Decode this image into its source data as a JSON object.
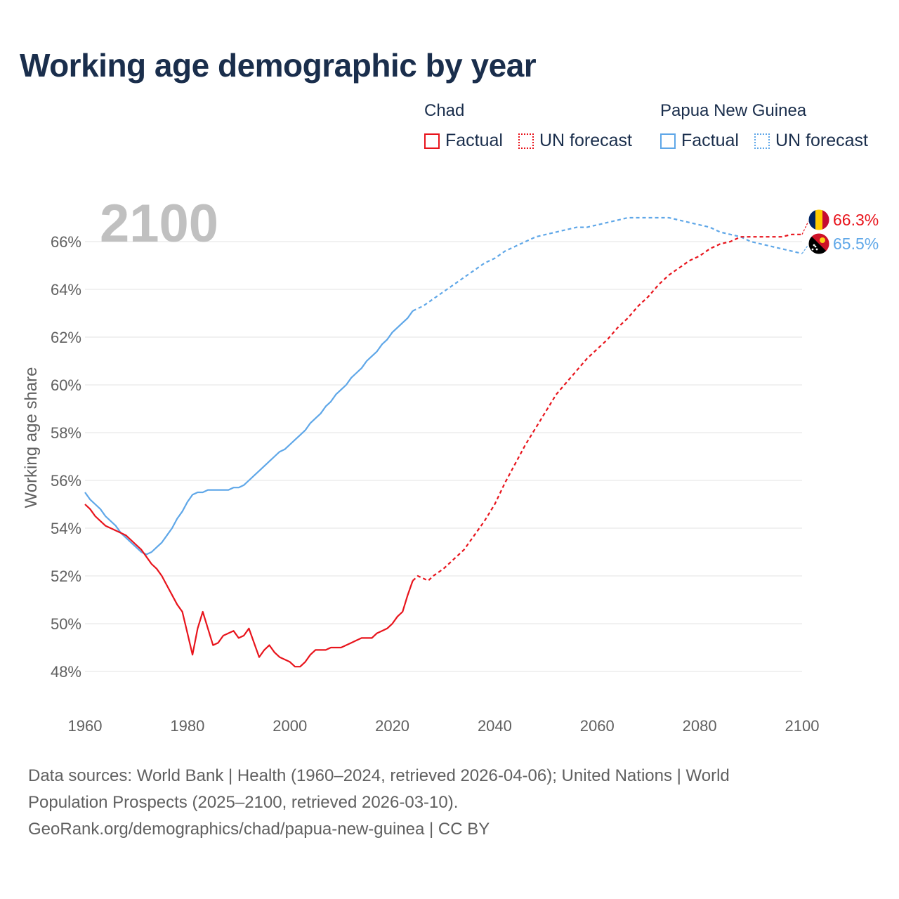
{
  "title": "Working age demographic by year",
  "legend": {
    "groups": [
      {
        "name": "Chad",
        "color": "#e8141c",
        "factual_label": "Factual",
        "forecast_label": "UN forecast"
      },
      {
        "name": "Papua New Guinea",
        "color": "#5fa7e8",
        "factual_label": "Factual",
        "forecast_label": "UN forecast"
      }
    ]
  },
  "chart_data": {
    "type": "line",
    "title": "Working age demographic by year",
    "year_watermark": "2100",
    "xlabel": "",
    "ylabel": "Working age share",
    "xlim": [
      1960,
      2100
    ],
    "ylim": [
      47,
      67.5
    ],
    "x_ticks": [
      1960,
      1980,
      2000,
      2020,
      2040,
      2060,
      2080,
      2100
    ],
    "x_tick_labels": [
      "1960",
      "1980",
      "2000",
      "2020",
      "2040",
      "2060",
      "2080",
      "2100"
    ],
    "y_ticks": [
      48,
      50,
      52,
      54,
      56,
      58,
      60,
      62,
      64,
      66
    ],
    "y_tick_labels": [
      "48%",
      "50%",
      "52%",
      "54%",
      "56%",
      "58%",
      "60%",
      "62%",
      "64%",
      "66%"
    ],
    "grid": true,
    "factual_range": "1960–2024",
    "forecast_range": "2025–2100",
    "series": [
      {
        "name": "Chad",
        "color": "#e8141c",
        "end_label": "66.3%",
        "flag_colors": [
          "#002664",
          "#fecb00",
          "#c60c30"
        ],
        "factual": [
          [
            1960,
            55.0
          ],
          [
            1961,
            54.8
          ],
          [
            1962,
            54.5
          ],
          [
            1963,
            54.3
          ],
          [
            1964,
            54.1
          ],
          [
            1965,
            54.0
          ],
          [
            1966,
            53.9
          ],
          [
            1967,
            53.8
          ],
          [
            1968,
            53.7
          ],
          [
            1969,
            53.5
          ],
          [
            1970,
            53.3
          ],
          [
            1971,
            53.1
          ],
          [
            1972,
            52.8
          ],
          [
            1973,
            52.5
          ],
          [
            1974,
            52.3
          ],
          [
            1975,
            52.0
          ],
          [
            1976,
            51.6
          ],
          [
            1977,
            51.2
          ],
          [
            1978,
            50.8
          ],
          [
            1979,
            50.5
          ],
          [
            1980,
            49.6
          ],
          [
            1981,
            48.7
          ],
          [
            1982,
            49.8
          ],
          [
            1983,
            50.5
          ],
          [
            1984,
            49.8
          ],
          [
            1985,
            49.1
          ],
          [
            1986,
            49.2
          ],
          [
            1987,
            49.5
          ],
          [
            1988,
            49.6
          ],
          [
            1989,
            49.7
          ],
          [
            1990,
            49.4
          ],
          [
            1991,
            49.5
          ],
          [
            1992,
            49.8
          ],
          [
            1993,
            49.2
          ],
          [
            1994,
            48.6
          ],
          [
            1995,
            48.9
          ],
          [
            1996,
            49.1
          ],
          [
            1997,
            48.8
          ],
          [
            1998,
            48.6
          ],
          [
            1999,
            48.5
          ],
          [
            2000,
            48.4
          ],
          [
            2001,
            48.2
          ],
          [
            2002,
            48.2
          ],
          [
            2003,
            48.4
          ],
          [
            2004,
            48.7
          ],
          [
            2005,
            48.9
          ],
          [
            2006,
            48.9
          ],
          [
            2007,
            48.9
          ],
          [
            2008,
            49.0
          ],
          [
            2009,
            49.0
          ],
          [
            2010,
            49.0
          ],
          [
            2011,
            49.1
          ],
          [
            2012,
            49.2
          ],
          [
            2013,
            49.3
          ],
          [
            2014,
            49.4
          ],
          [
            2015,
            49.4
          ],
          [
            2016,
            49.4
          ],
          [
            2017,
            49.6
          ],
          [
            2018,
            49.7
          ],
          [
            2019,
            49.8
          ],
          [
            2020,
            50.0
          ],
          [
            2021,
            50.3
          ],
          [
            2022,
            50.5
          ],
          [
            2023,
            51.2
          ],
          [
            2024,
            51.8
          ]
        ],
        "forecast": [
          [
            2024,
            51.8
          ],
          [
            2025,
            52.0
          ],
          [
            2026,
            51.9
          ],
          [
            2027,
            51.8
          ],
          [
            2028,
            52.0
          ],
          [
            2030,
            52.3
          ],
          [
            2032,
            52.7
          ],
          [
            2034,
            53.1
          ],
          [
            2036,
            53.7
          ],
          [
            2038,
            54.3
          ],
          [
            2040,
            55.0
          ],
          [
            2042,
            55.9
          ],
          [
            2044,
            56.7
          ],
          [
            2046,
            57.5
          ],
          [
            2048,
            58.2
          ],
          [
            2050,
            58.9
          ],
          [
            2052,
            59.6
          ],
          [
            2054,
            60.1
          ],
          [
            2056,
            60.6
          ],
          [
            2058,
            61.1
          ],
          [
            2060,
            61.5
          ],
          [
            2062,
            61.9
          ],
          [
            2064,
            62.4
          ],
          [
            2066,
            62.8
          ],
          [
            2068,
            63.3
          ],
          [
            2070,
            63.7
          ],
          [
            2072,
            64.2
          ],
          [
            2074,
            64.6
          ],
          [
            2076,
            64.9
          ],
          [
            2078,
            65.2
          ],
          [
            2080,
            65.4
          ],
          [
            2082,
            65.7
          ],
          [
            2084,
            65.9
          ],
          [
            2086,
            66.0
          ],
          [
            2088,
            66.2
          ],
          [
            2090,
            66.2
          ],
          [
            2092,
            66.2
          ],
          [
            2094,
            66.2
          ],
          [
            2096,
            66.2
          ],
          [
            2098,
            66.3
          ],
          [
            2100,
            66.3
          ]
        ]
      },
      {
        "name": "Papua New Guinea",
        "color": "#5fa7e8",
        "end_label": "65.5%",
        "flag_colors": [
          "#000000",
          "#ce1126",
          "#fcd116"
        ],
        "factual": [
          [
            1960,
            55.5
          ],
          [
            1961,
            55.2
          ],
          [
            1962,
            55.0
          ],
          [
            1963,
            54.8
          ],
          [
            1964,
            54.5
          ],
          [
            1965,
            54.3
          ],
          [
            1966,
            54.1
          ],
          [
            1967,
            53.8
          ],
          [
            1968,
            53.6
          ],
          [
            1969,
            53.4
          ],
          [
            1970,
            53.2
          ],
          [
            1971,
            53.0
          ],
          [
            1972,
            52.9
          ],
          [
            1973,
            53.0
          ],
          [
            1974,
            53.2
          ],
          [
            1975,
            53.4
          ],
          [
            1976,
            53.7
          ],
          [
            1977,
            54.0
          ],
          [
            1978,
            54.4
          ],
          [
            1979,
            54.7
          ],
          [
            1980,
            55.1
          ],
          [
            1981,
            55.4
          ],
          [
            1982,
            55.5
          ],
          [
            1983,
            55.5
          ],
          [
            1984,
            55.6
          ],
          [
            1985,
            55.6
          ],
          [
            1986,
            55.6
          ],
          [
            1987,
            55.6
          ],
          [
            1988,
            55.6
          ],
          [
            1989,
            55.7
          ],
          [
            1990,
            55.7
          ],
          [
            1991,
            55.8
          ],
          [
            1992,
            56.0
          ],
          [
            1993,
            56.2
          ],
          [
            1994,
            56.4
          ],
          [
            1995,
            56.6
          ],
          [
            1996,
            56.8
          ],
          [
            1997,
            57.0
          ],
          [
            1998,
            57.2
          ],
          [
            1999,
            57.3
          ],
          [
            2000,
            57.5
          ],
          [
            2001,
            57.7
          ],
          [
            2002,
            57.9
          ],
          [
            2003,
            58.1
          ],
          [
            2004,
            58.4
          ],
          [
            2005,
            58.6
          ],
          [
            2006,
            58.8
          ],
          [
            2007,
            59.1
          ],
          [
            2008,
            59.3
          ],
          [
            2009,
            59.6
          ],
          [
            2010,
            59.8
          ],
          [
            2011,
            60.0
          ],
          [
            2012,
            60.3
          ],
          [
            2013,
            60.5
          ],
          [
            2014,
            60.7
          ],
          [
            2015,
            61.0
          ],
          [
            2016,
            61.2
          ],
          [
            2017,
            61.4
          ],
          [
            2018,
            61.7
          ],
          [
            2019,
            61.9
          ],
          [
            2020,
            62.2
          ],
          [
            2021,
            62.4
          ],
          [
            2022,
            62.6
          ],
          [
            2023,
            62.8
          ],
          [
            2024,
            63.1
          ]
        ],
        "forecast": [
          [
            2024,
            63.1
          ],
          [
            2026,
            63.3
          ],
          [
            2028,
            63.6
          ],
          [
            2030,
            63.9
          ],
          [
            2032,
            64.2
          ],
          [
            2034,
            64.5
          ],
          [
            2036,
            64.8
          ],
          [
            2038,
            65.1
          ],
          [
            2040,
            65.3
          ],
          [
            2042,
            65.6
          ],
          [
            2044,
            65.8
          ],
          [
            2046,
            66.0
          ],
          [
            2048,
            66.2
          ],
          [
            2050,
            66.3
          ],
          [
            2052,
            66.4
          ],
          [
            2054,
            66.5
          ],
          [
            2056,
            66.6
          ],
          [
            2058,
            66.6
          ],
          [
            2060,
            66.7
          ],
          [
            2062,
            66.8
          ],
          [
            2064,
            66.9
          ],
          [
            2066,
            67.0
          ],
          [
            2068,
            67.0
          ],
          [
            2070,
            67.0
          ],
          [
            2072,
            67.0
          ],
          [
            2074,
            67.0
          ],
          [
            2076,
            66.9
          ],
          [
            2078,
            66.8
          ],
          [
            2080,
            66.7
          ],
          [
            2082,
            66.6
          ],
          [
            2084,
            66.4
          ],
          [
            2086,
            66.3
          ],
          [
            2088,
            66.2
          ],
          [
            2090,
            66.0
          ],
          [
            2092,
            65.9
          ],
          [
            2094,
            65.8
          ],
          [
            2096,
            65.7
          ],
          [
            2098,
            65.6
          ],
          [
            2100,
            65.5
          ]
        ]
      }
    ]
  },
  "footer": {
    "line1": "Data sources: World Bank | Health (1960–2024, retrieved 2026-04-06); United Nations | World",
    "line2": "Population Prospects (2025–2100, retrieved 2026-03-10).",
    "line3": "GeoRank.org/demographics/chad/papua-new-guinea | CC BY"
  }
}
